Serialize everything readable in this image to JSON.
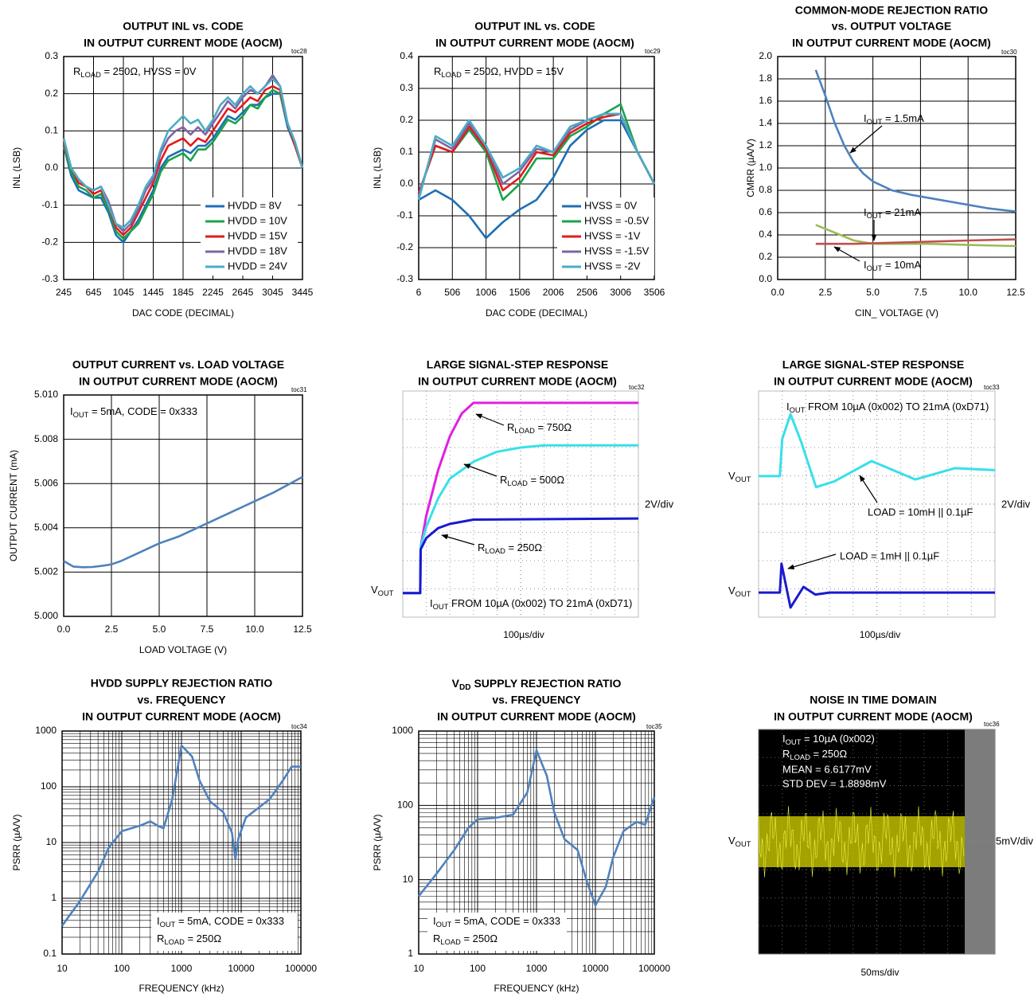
{
  "chart_data": [
    {
      "type": "line",
      "title": [
        "OUTPUT INL vs. CODE",
        "IN OUTPUT CURRENT MODE (AOCM)"
      ],
      "label": "toc28",
      "xlabel": "DAC CODE (DECIMAL)",
      "ylabel": "INL (LSB)",
      "annotations": [
        [
          "R",
          "LOAD",
          " = 250Ω, HVSS = 0V"
        ]
      ],
      "x": [
        245,
        345,
        445,
        545,
        645,
        745,
        845,
        945,
        1045,
        1145,
        1245,
        1345,
        1445,
        1545,
        1645,
        1745,
        1845,
        1945,
        2045,
        2145,
        2245,
        2345,
        2445,
        2545,
        2645,
        2745,
        2845,
        2945,
        3045,
        3145,
        3245,
        3345,
        3445
      ],
      "series": [
        {
          "name": "HVDD = 8V",
          "color": "#1f6fb5",
          "values": [
            0.06,
            -0.02,
            -0.06,
            -0.07,
            -0.08,
            -0.08,
            -0.12,
            -0.18,
            -0.2,
            -0.17,
            -0.14,
            -0.1,
            -0.06,
            0.0,
            0.03,
            0.04,
            0.05,
            0.04,
            0.06,
            0.06,
            0.08,
            0.11,
            0.14,
            0.13,
            0.15,
            0.17,
            0.17,
            0.19,
            0.2,
            0.2,
            0.11,
            0.06,
            0.0
          ]
        },
        {
          "name": "HVDD = 10V",
          "color": "#1aa34a",
          "values": [
            0.06,
            -0.01,
            -0.05,
            -0.06,
            -0.08,
            -0.07,
            -0.11,
            -0.17,
            -0.19,
            -0.17,
            -0.15,
            -0.11,
            -0.07,
            -0.01,
            0.02,
            0.03,
            0.04,
            0.02,
            0.05,
            0.05,
            0.07,
            0.1,
            0.13,
            0.12,
            0.14,
            0.17,
            0.16,
            0.19,
            0.21,
            0.2,
            0.12,
            0.06,
            0.0
          ]
        },
        {
          "name": "HVDD = 15V",
          "color": "#e31a1c",
          "values": [
            0.07,
            0.0,
            -0.04,
            -0.05,
            -0.07,
            -0.06,
            -0.1,
            -0.16,
            -0.18,
            -0.16,
            -0.12,
            -0.08,
            -0.04,
            0.02,
            0.06,
            0.07,
            0.08,
            0.06,
            0.08,
            0.07,
            0.1,
            0.13,
            0.16,
            0.15,
            0.17,
            0.19,
            0.18,
            0.21,
            0.22,
            0.21,
            0.12,
            0.06,
            0.0
          ]
        },
        {
          "name": "HVDD = 18V",
          "color": "#8064a2",
          "values": [
            0.08,
            0.0,
            -0.03,
            -0.05,
            -0.06,
            -0.05,
            -0.09,
            -0.15,
            -0.17,
            -0.15,
            -0.11,
            -0.06,
            -0.03,
            0.04,
            0.08,
            0.1,
            0.11,
            0.09,
            0.11,
            0.09,
            0.12,
            0.15,
            0.18,
            0.16,
            0.19,
            0.21,
            0.2,
            0.22,
            0.25,
            0.22,
            0.12,
            0.07,
            0.0
          ]
        },
        {
          "name": "HVDD = 24V",
          "color": "#4bacc6",
          "values": [
            0.08,
            0.0,
            -0.03,
            -0.05,
            -0.06,
            -0.05,
            -0.1,
            -0.15,
            -0.16,
            -0.14,
            -0.1,
            -0.05,
            -0.02,
            0.05,
            0.1,
            0.12,
            0.14,
            0.12,
            0.13,
            0.1,
            0.13,
            0.17,
            0.19,
            0.17,
            0.2,
            0.22,
            0.2,
            0.22,
            0.24,
            0.22,
            0.12,
            0.07,
            0.0
          ]
        }
      ],
      "xlim": [
        245,
        3445
      ],
      "xticks": [
        245,
        645,
        1045,
        1445,
        1845,
        2245,
        2645,
        3045,
        3445
      ],
      "ylim": [
        -0.3,
        0.3
      ],
      "yticks": [
        -0.3,
        -0.2,
        -0.1,
        {
          "value": 0,
          "label": "0.0"
        },
        0.1,
        0.2,
        0.3
      ],
      "grid": true,
      "legend": "lower right"
    },
    {
      "type": "line",
      "title": [
        "OUTPUT INL vs. CODE",
        "IN OUTPUT CURRENT MODE (AOCM)"
      ],
      "label": "toc29",
      "xlabel": "DAC CODE (DECIMAL)",
      "ylabel": "INL (LSB)",
      "annotations": [
        [
          "R",
          "LOAD",
          " = 250Ω, HVDD = 15V"
        ]
      ],
      "x": [
        6,
        256,
        506,
        756,
        1006,
        1256,
        1506,
        1756,
        2006,
        2256,
        2506,
        2756,
        3006,
        3256,
        3506
      ],
      "series": [
        {
          "name": "HVSS = 0V",
          "color": "#1f6fb5",
          "values": [
            -0.05,
            -0.02,
            -0.05,
            -0.1,
            -0.17,
            -0.12,
            -0.08,
            -0.05,
            0.02,
            0.12,
            0.17,
            0.2,
            0.2,
            0.1,
            0.0
          ]
        },
        {
          "name": "HVSS = -0.5V",
          "color": "#1aa34a",
          "values": [
            -0.03,
            0.12,
            0.1,
            0.17,
            0.1,
            -0.05,
            0.0,
            0.08,
            0.08,
            0.15,
            0.18,
            0.22,
            0.25,
            0.1,
            0.0
          ]
        },
        {
          "name": "HVSS = -1V",
          "color": "#e31a1c",
          "values": [
            -0.03,
            0.12,
            0.1,
            0.18,
            0.11,
            -0.02,
            0.02,
            0.1,
            0.09,
            0.16,
            0.19,
            0.21,
            0.22,
            0.1,
            0.0
          ]
        },
        {
          "name": "HVSS = -1.5V",
          "color": "#8064a2",
          "values": [
            -0.04,
            0.14,
            0.11,
            0.19,
            0.12,
            0.0,
            0.04,
            0.11,
            0.1,
            0.17,
            0.2,
            0.22,
            0.22,
            0.1,
            0.0
          ]
        },
        {
          "name": "HVSS = -2V",
          "color": "#4bacc6",
          "values": [
            -0.05,
            0.15,
            0.12,
            0.2,
            0.12,
            0.02,
            0.05,
            0.12,
            0.1,
            0.18,
            0.2,
            0.22,
            0.22,
            0.1,
            0.0
          ]
        }
      ],
      "xlim": [
        6,
        3506
      ],
      "xticks": [
        6,
        506,
        1006,
        1506,
        2006,
        2506,
        3006,
        3506
      ],
      "ylim": [
        -0.3,
        0.4
      ],
      "yticks": [
        -0.3,
        -0.2,
        -0.1,
        {
          "value": 0,
          "label": "0.0"
        },
        0.1,
        0.2,
        0.3,
        0.4
      ],
      "grid": true,
      "legend": "lower right"
    },
    {
      "type": "line",
      "title": [
        "COMMON-MODE REJECTION RATIO",
        "vs. OUTPUT VOLTAGE",
        "IN OUTPUT CURRENT MODE (AOCM)"
      ],
      "label": "toc30",
      "xlabel": "CIN_ VOLTAGE (V)",
      "ylabel": "CMRR (µA/V)",
      "annotations": [
        [
          "I",
          "OUT",
          " = 1.5mA"
        ],
        [
          "I",
          "OUT",
          " = 21mA"
        ],
        [
          "I",
          "OUT",
          " = 10mA"
        ]
      ],
      "series": [
        {
          "color": "#4f81bd",
          "x": [
            2,
            2.5,
            3,
            3.5,
            4,
            4.5,
            5,
            6,
            7,
            8,
            9,
            10,
            11,
            12.5
          ],
          "values": [
            1.88,
            1.65,
            1.4,
            1.2,
            1.05,
            0.95,
            0.88,
            0.8,
            0.76,
            0.73,
            0.7,
            0.67,
            0.64,
            0.61
          ]
        },
        {
          "color": "#9bbb59",
          "x": [
            2,
            3,
            4,
            5,
            6,
            8,
            10,
            12.5
          ],
          "values": [
            0.49,
            0.42,
            0.35,
            0.32,
            0.32,
            0.32,
            0.31,
            0.3
          ]
        },
        {
          "color": "#c0504d",
          "x": [
            2,
            4,
            6,
            8,
            10,
            12.5
          ],
          "values": [
            0.32,
            0.32,
            0.33,
            0.34,
            0.35,
            0.36
          ]
        }
      ],
      "xlim": [
        0,
        12.5
      ],
      "xticks": [
        {
          "value": 0,
          "label": "0.0"
        },
        2.5,
        {
          "value": 5,
          "label": "5.0"
        },
        7.5,
        {
          "value": 10,
          "label": "10.0"
        },
        12.5
      ],
      "ylim": [
        0,
        2
      ],
      "yticks": [
        {
          "value": 0,
          "label": "0.0"
        },
        0.2,
        0.4,
        0.6,
        0.8,
        {
          "value": 1,
          "label": "1.0"
        },
        1.2,
        1.4,
        1.6,
        1.8,
        {
          "value": 2,
          "label": "2.0"
        }
      ],
      "grid": true
    },
    {
      "type": "line",
      "title": [
        "OUTPUT CURRENT vs. LOAD VOLTAGE",
        "IN OUTPUT CURRENT MODE (AOCM)"
      ],
      "label": "toc31",
      "xlabel": "LOAD VOLTAGE (V)",
      "ylabel": "OUTPUT CURRENT (mA)",
      "annotations": [
        [
          "I",
          "OUT",
          " = 5mA, CODE = 0x333"
        ]
      ],
      "x": [
        0,
        0.5,
        1,
        1.5,
        2,
        2.5,
        3,
        4,
        5,
        6,
        7,
        8,
        9,
        10,
        11,
        12.5
      ],
      "series": [
        {
          "color": "#4f81bd",
          "values": [
            5.0025,
            5.00225,
            5.00222,
            5.00223,
            5.00228,
            5.00235,
            5.0025,
            5.0029,
            5.0033,
            5.0036,
            5.004,
            5.0044,
            5.0048,
            5.0052,
            5.0056,
            5.0063
          ]
        }
      ],
      "xlim": [
        0,
        12.5
      ],
      "xticks": [
        {
          "value": 0,
          "label": "0.0"
        },
        2.5,
        {
          "value": 5,
          "label": "5.0"
        },
        7.5,
        {
          "value": 10,
          "label": "10.0"
        },
        12.5
      ],
      "ylim": [
        5,
        5.01
      ],
      "yticks": [
        {
          "value": 5,
          "label": "5.000"
        },
        {
          "value": 5.002,
          "label": "5.002"
        },
        {
          "value": 5.004,
          "label": "5.004"
        },
        {
          "value": 5.006,
          "label": "5.006"
        },
        {
          "value": 5.008,
          "label": "5.008"
        },
        {
          "value": 5.01,
          "label": "5.010"
        }
      ],
      "grid": true
    },
    {
      "type": "scope",
      "title": [
        "LARGE SIGNAL-STEP RESPONSE",
        "IN OUTPUT CURRENT MODE (AOCM)"
      ],
      "label": "toc32",
      "xlabel": "100µs/div",
      "background": "#ffffff",
      "annotations": [
        "2V/div",
        [
          "R",
          "LOAD",
          " = 750Ω"
        ],
        [
          "R",
          "LOAD",
          " = 500Ω"
        ],
        [
          "R",
          "LOAD",
          " = 250Ω"
        ],
        [
          "I",
          "OUT",
          " FROM 10µA (0x002) TO 21mA (0xD71)"
        ],
        [
          "V",
          "OUT"
        ]
      ],
      "series": [
        {
          "color": "#e020e0",
          "x": [
            0,
            0.74,
            0.76,
            1,
            1.5,
            2,
            2.5,
            3,
            10
          ],
          "values": [
            0.85,
            0.85,
            2.5,
            3.6,
            5.2,
            6.4,
            7.2,
            7.58,
            7.58
          ]
        },
        {
          "color": "#38e0e8",
          "x": [
            0,
            0.74,
            0.76,
            1,
            1.5,
            2,
            3,
            4,
            5,
            6,
            10
          ],
          "values": [
            0.85,
            0.85,
            2.5,
            3.2,
            4.2,
            4.9,
            5.5,
            5.85,
            6,
            6.08,
            6.08
          ]
        },
        {
          "color": "#1a1ad0",
          "x": [
            0,
            0.74,
            0.76,
            1,
            1.5,
            2,
            3,
            10
          ],
          "values": [
            0.85,
            0.85,
            2.4,
            2.8,
            3.15,
            3.3,
            3.45,
            3.49
          ]
        }
      ],
      "xlim": [
        0,
        10
      ],
      "ylim": [
        0,
        8
      ]
    },
    {
      "type": "scope",
      "title": [
        "LARGE SIGNAL-STEP RESPONSE",
        "IN OUTPUT CURRENT MODE (AOCM)"
      ],
      "label": "toc33",
      "xlabel": "100µs/div",
      "background": "#ffffff",
      "annotations": [
        [
          "I",
          "OUT",
          " FROM 10µA (0x002) TO 21mA (0xD71)"
        ],
        [
          "V",
          "OUT"
        ],
        [
          "V",
          "OUT"
        ],
        "2V/div",
        "LOAD = 10mH || 0.1µF",
        "LOAD = 1mH || 0.1µF"
      ],
      "series": [
        {
          "color": "#38e0e8",
          "x": [
            0,
            0.9,
            1,
            1.35,
            1.8,
            2.43,
            3.2,
            4.78,
            6.63,
            8.3,
            10
          ],
          "values": [
            4.99,
            4.99,
            6.3,
            7.18,
            6.2,
            4.6,
            4.8,
            5.52,
            4.87,
            5.27,
            5.2
          ]
        },
        {
          "color": "#1a1ad0",
          "x": [
            0,
            0.9,
            0.97,
            1.35,
            1.9,
            2.4,
            3,
            10
          ],
          "values": [
            0.87,
            0.87,
            1.89,
            0.34,
            1.07,
            0.8,
            0.87,
            0.87
          ]
        }
      ],
      "xlim": [
        0,
        10
      ],
      "ylim": [
        0,
        8
      ]
    },
    {
      "type": "line",
      "title": [
        "HVDD SUPPLY REJECTION RATIO",
        "vs. FREQUENCY",
        "IN OUTPUT CURRENT MODE (AOCM)"
      ],
      "label": "toc34",
      "xlabel": "FREQUENCY (kHz)",
      "ylabel": "PSRR (µA/V)",
      "annotations": [
        [
          "I",
          "OUT",
          " = 5mA, CODE = 0x333"
        ],
        [
          "R",
          "LOAD",
          " = 250Ω"
        ]
      ],
      "x": [
        10,
        20,
        40,
        60,
        100,
        200,
        300,
        400,
        500,
        700,
        1000,
        1500,
        2000,
        3000,
        5000,
        7000,
        8000,
        9000,
        12000,
        30000,
        50000,
        70000,
        100000
      ],
      "series": [
        {
          "color": "#4f81bd",
          "values": [
            0.32,
            0.9,
            3,
            8,
            16,
            20,
            24,
            20,
            18,
            60,
            550,
            350,
            130,
            55,
            35,
            15,
            5,
            12,
            28,
            60,
            130,
            230,
            230
          ]
        }
      ],
      "xlim": [
        10,
        100000
      ],
      "xticks": [
        10,
        100,
        1000,
        10000,
        100000
      ],
      "xscale": "log",
      "ylim": [
        0.1,
        1000
      ],
      "yticks": [
        0.1,
        1,
        10,
        100,
        1000
      ],
      "yscale": "log",
      "grid": true
    },
    {
      "type": "line",
      "title": [
        [
          "V",
          "DD",
          " SUPPLY REJECTION RATIO"
        ],
        "vs. FREQUENCY",
        "IN OUTPUT CURRENT MODE (AOCM)"
      ],
      "label": "toc35",
      "xlabel": "FREQUENCY (kHz)",
      "ylabel": "PSRR (µA/V)",
      "annotations": [
        [
          "I",
          "OUT",
          " = 5mA, CODE = 0x333"
        ],
        [
          "R",
          "LOAD",
          " = 250Ω"
        ]
      ],
      "x": [
        10,
        20,
        40,
        70,
        100,
        200,
        400,
        700,
        1000,
        1500,
        2000,
        3000,
        5000,
        7000,
        10000,
        15000,
        20000,
        30000,
        50000,
        70000,
        100000
      ],
      "series": [
        {
          "color": "#4f81bd",
          "values": [
            6,
            12,
            25,
            50,
            65,
            68,
            75,
            150,
            550,
            250,
            80,
            35,
            25,
            10,
            4.5,
            8,
            20,
            45,
            60,
            55,
            130
          ]
        }
      ],
      "xlim": [
        10,
        100000
      ],
      "xticks": [
        10,
        100,
        1000,
        10000,
        100000
      ],
      "xscale": "log",
      "ylim": [
        1,
        1000
      ],
      "yticks": [
        1,
        10,
        100,
        1000
      ],
      "yscale": "log",
      "grid": true
    },
    {
      "type": "scope",
      "title": [
        "NOISE IN TIME DOMAIN",
        "IN OUTPUT CURRENT MODE (AOCM)"
      ],
      "label": "toc36",
      "xlabel": "50ms/div",
      "background": "#000000",
      "annotations": [
        [
          "I",
          "OUT",
          " = 10µA (0x002)"
        ],
        [
          "R",
          "LOAD",
          " = 250Ω"
        ],
        "MEAN = 6.6177mV",
        "STD DEV = 1.8898mV",
        [
          "V",
          "OUT"
        ],
        "5mV/div"
      ],
      "series": [],
      "xlim": [
        0,
        10
      ],
      "ylim": [
        0,
        8
      ]
    }
  ]
}
